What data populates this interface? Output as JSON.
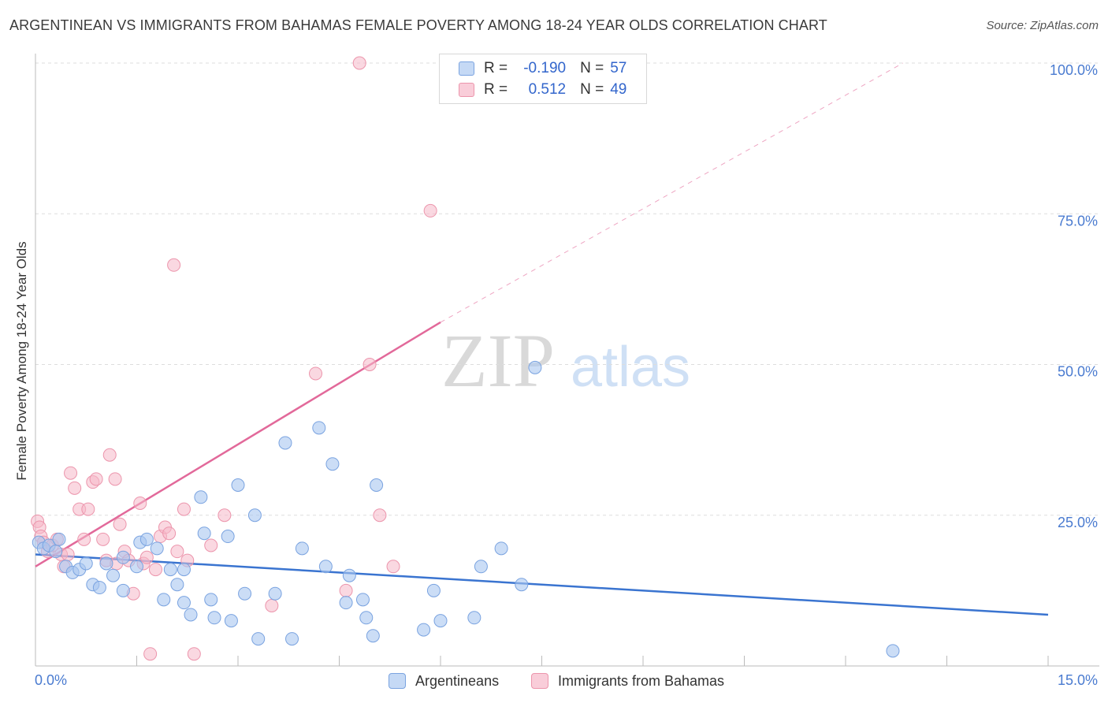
{
  "title": "ARGENTINEAN VS IMMIGRANTS FROM BAHAMAS FEMALE POVERTY AMONG 18-24 YEAR OLDS CORRELATION CHART",
  "source": "Source: ZipAtlas.com",
  "legend": {
    "row1": {
      "r_label": "R =",
      "r_value": "-0.190",
      "n_label": "N =",
      "n_value": "57"
    },
    "row2": {
      "r_label": "R =",
      "r_value": "0.512",
      "n_label": "N =",
      "n_value": "49"
    }
  },
  "bottom_legend": {
    "series1": "Argentineans",
    "series2": "Immigrants from Bahamas"
  },
  "watermark": {
    "part1": "ZIP",
    "part2": "atlas"
  },
  "colors": {
    "blue_fill": "#a9c6f0",
    "blue_stroke": "#7aa3e0",
    "blue_line": "#3a74d0",
    "pink_fill": "#f6b8c8",
    "pink_stroke": "#ec95ac",
    "pink_line": "#e2699a",
    "axis_text": "#4a7bd0",
    "grid": "#dddddd"
  },
  "chart_data": {
    "type": "scatter",
    "title": "ARGENTINEAN VS IMMIGRANTS FROM BAHAMAS FEMALE POVERTY AMONG 18-24 YEAR OLDS CORRELATION CHART",
    "xlabel": "",
    "ylabel": "Female Poverty Among 18-24 Year Olds",
    "xlim": [
      0,
      15
    ],
    "ylim": [
      0,
      100
    ],
    "x_ticks": [
      0,
      1.5,
      3,
      4.5,
      6,
      7.5,
      9,
      10.5,
      12,
      13.5,
      15
    ],
    "x_tick_labels": [
      "0.0%",
      "15.0%"
    ],
    "y_ticks": [
      25,
      50,
      75,
      100
    ],
    "y_tick_labels": [
      "25.0%",
      "50.0%",
      "75.0%",
      "100.0%"
    ],
    "grid": true,
    "series": [
      {
        "name": "Argentineans",
        "R": -0.19,
        "N": 57,
        "trend": {
          "x0": 0,
          "y0": 18.5,
          "x1": 15,
          "y1": 8.5
        },
        "points": [
          [
            0.05,
            20.5
          ],
          [
            0.12,
            19.5
          ],
          [
            0.2,
            20.0
          ],
          [
            0.3,
            19.0
          ],
          [
            0.35,
            21.0
          ],
          [
            0.45,
            16.5
          ],
          [
            0.55,
            15.5
          ],
          [
            0.65,
            16.0
          ],
          [
            0.75,
            17.0
          ],
          [
            0.85,
            13.5
          ],
          [
            0.95,
            13.0
          ],
          [
            1.05,
            17.0
          ],
          [
            1.15,
            15.0
          ],
          [
            1.3,
            18.0
          ],
          [
            1.3,
            12.5
          ],
          [
            1.5,
            16.5
          ],
          [
            1.55,
            20.5
          ],
          [
            1.65,
            21.0
          ],
          [
            1.8,
            19.5
          ],
          [
            1.9,
            11.0
          ],
          [
            2.0,
            16.0
          ],
          [
            2.1,
            13.5
          ],
          [
            2.2,
            10.5
          ],
          [
            2.2,
            16.0
          ],
          [
            2.3,
            8.5
          ],
          [
            2.45,
            28.0
          ],
          [
            2.5,
            22.0
          ],
          [
            2.6,
            11.0
          ],
          [
            2.65,
            8.0
          ],
          [
            2.85,
            21.5
          ],
          [
            2.9,
            7.5
          ],
          [
            3.0,
            30.0
          ],
          [
            3.1,
            12.0
          ],
          [
            3.25,
            25.0
          ],
          [
            3.3,
            4.5
          ],
          [
            3.55,
            12.0
          ],
          [
            3.7,
            37.0
          ],
          [
            3.8,
            4.5
          ],
          [
            3.95,
            19.5
          ],
          [
            4.2,
            39.5
          ],
          [
            4.3,
            16.5
          ],
          [
            4.4,
            33.5
          ],
          [
            4.6,
            10.5
          ],
          [
            4.65,
            15.0
          ],
          [
            4.85,
            11.0
          ],
          [
            4.9,
            8.0
          ],
          [
            5.0,
            5.0
          ],
          [
            5.05,
            30.0
          ],
          [
            5.75,
            6.0
          ],
          [
            5.9,
            12.5
          ],
          [
            6.0,
            7.5
          ],
          [
            6.5,
            8.0
          ],
          [
            6.6,
            16.5
          ],
          [
            6.9,
            19.5
          ],
          [
            7.2,
            13.5
          ],
          [
            7.4,
            49.5
          ],
          [
            12.7,
            2.5
          ]
        ]
      },
      {
        "name": "Immigrants from Bahamas",
        "R": 0.512,
        "N": 49,
        "trend": {
          "x0": 0,
          "y0": 16.5,
          "x1": 6.0,
          "y1": 57.0
        },
        "trend_extension": {
          "x0": 6.0,
          "y0": 57.0,
          "x1": 12.85,
          "y1": 100.0
        },
        "points": [
          [
            0.03,
            24.0
          ],
          [
            0.06,
            23.0
          ],
          [
            0.08,
            21.5
          ],
          [
            0.12,
            20.5
          ],
          [
            0.18,
            19.0
          ],
          [
            0.25,
            20.0
          ],
          [
            0.32,
            21.0
          ],
          [
            0.38,
            18.5
          ],
          [
            0.42,
            16.5
          ],
          [
            0.48,
            18.5
          ],
          [
            0.52,
            32.0
          ],
          [
            0.58,
            29.5
          ],
          [
            0.65,
            26.0
          ],
          [
            0.72,
            21.0
          ],
          [
            0.78,
            26.0
          ],
          [
            0.85,
            30.5
          ],
          [
            0.9,
            31.0
          ],
          [
            1.0,
            21.0
          ],
          [
            1.05,
            17.5
          ],
          [
            1.1,
            35.0
          ],
          [
            1.18,
            31.0
          ],
          [
            1.25,
            23.5
          ],
          [
            1.32,
            19.0
          ],
          [
            1.38,
            17.5
          ],
          [
            1.45,
            12.0
          ],
          [
            1.55,
            27.0
          ],
          [
            1.6,
            17.0
          ],
          [
            1.65,
            18.0
          ],
          [
            1.7,
            2.0
          ],
          [
            1.78,
            16.0
          ],
          [
            1.85,
            21.5
          ],
          [
            1.92,
            23.0
          ],
          [
            1.98,
            22.0
          ],
          [
            2.05,
            66.5
          ],
          [
            2.1,
            19.0
          ],
          [
            2.2,
            26.0
          ],
          [
            2.25,
            17.5
          ],
          [
            2.35,
            2.0
          ],
          [
            2.6,
            20.0
          ],
          [
            2.8,
            25.0
          ],
          [
            3.5,
            10.0
          ],
          [
            4.15,
            48.5
          ],
          [
            4.6,
            12.5
          ],
          [
            4.8,
            100.0
          ],
          [
            4.95,
            50.0
          ],
          [
            5.1,
            25.0
          ],
          [
            5.3,
            16.5
          ],
          [
            5.85,
            75.5
          ],
          [
            1.2,
            17.0
          ]
        ]
      }
    ]
  }
}
